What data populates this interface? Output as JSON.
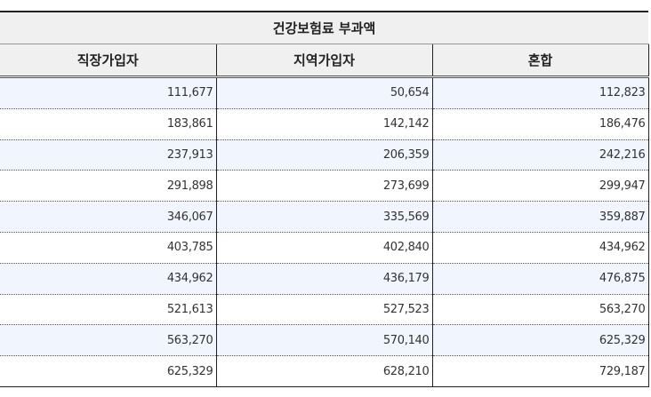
{
  "table": {
    "title": "건강보험료 부과액",
    "headers": [
      "직장가입자",
      "지역가입자",
      "혼합"
    ],
    "rows": [
      [
        "111,677",
        "50,654",
        "112,823"
      ],
      [
        "183,861",
        "142,142",
        "186,476"
      ],
      [
        "237,913",
        "206,359",
        "242,216"
      ],
      [
        "291,898",
        "273,699",
        "299,947"
      ],
      [
        "346,067",
        "335,569",
        "359,887"
      ],
      [
        "403,785",
        "402,840",
        "434,962"
      ],
      [
        "434,962",
        "436,179",
        "476,875"
      ],
      [
        "521,613",
        "527,523",
        "563,270"
      ],
      [
        "563,270",
        "570,140",
        "625,329"
      ],
      [
        "625,329",
        "628,210",
        "729,187"
      ]
    ]
  },
  "colors": {
    "header_bg": "#f0f0f0",
    "stripe_bg": "#f1f5fd",
    "border": "#222222"
  }
}
